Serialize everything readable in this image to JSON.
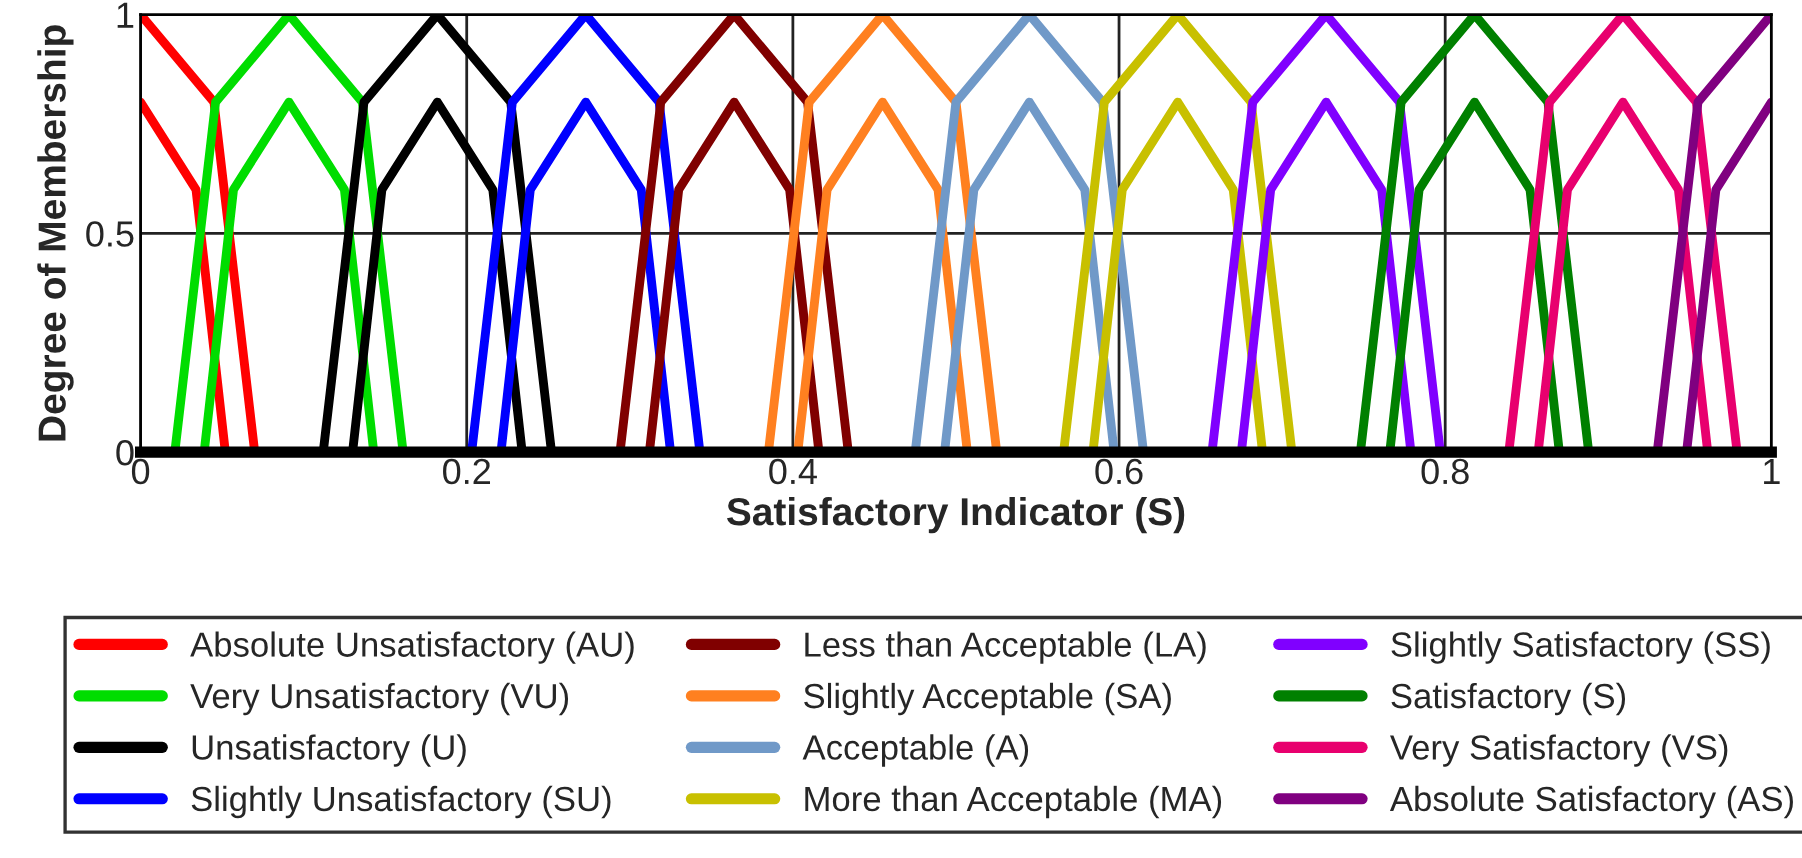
{
  "chart_data": {
    "type": "line",
    "xlabel": "Satisfactory Indicator (S)",
    "ylabel": "Degree of Membership",
    "xlim": [
      0,
      1
    ],
    "ylim": [
      0,
      1
    ],
    "xticks": [
      0,
      0.2,
      0.4,
      0.6,
      0.8,
      1
    ],
    "yticks": [
      0,
      0.5,
      1
    ],
    "grid": true,
    "legend": "bottom",
    "marker": "none",
    "line_style": "solid",
    "series": [
      {
        "name": "Absolute Unsatisfactory (AU)",
        "color": "#ff0000",
        "x": [
          0,
          0.045,
          0.07
        ],
        "values": [
          1,
          0.8,
          0
        ]
      },
      {
        "color": "#ff0000",
        "x": [
          0,
          0.034,
          0.052
        ],
        "values": [
          0.8,
          0.6,
          0
        ]
      },
      {
        "name": "Very Unsatisfactory (VU)",
        "color": "#00dd00",
        "x": [
          0.021,
          0.046,
          0.091,
          0.136,
          0.161
        ],
        "values": [
          0,
          0.8,
          1,
          0.8,
          0
        ]
      },
      {
        "color": "#00dd00",
        "x": [
          0.039,
          0.057,
          0.091,
          0.125,
          0.143
        ],
        "values": [
          0,
          0.6,
          0.8,
          0.6,
          0
        ]
      },
      {
        "name": "Unsatisfactory (U)",
        "color": "#000000",
        "x": [
          0.112,
          0.137,
          0.182,
          0.227,
          0.252
        ],
        "values": [
          0,
          0.8,
          1,
          0.8,
          0
        ]
      },
      {
        "color": "#000000",
        "x": [
          0.13,
          0.148,
          0.182,
          0.216,
          0.234
        ],
        "values": [
          0,
          0.6,
          0.8,
          0.6,
          0
        ]
      },
      {
        "name": "Slightly Unsatisfactory (SU)",
        "color": "#0000ff",
        "x": [
          0.203,
          0.228,
          0.273,
          0.318,
          0.343
        ],
        "values": [
          0,
          0.8,
          1,
          0.8,
          0
        ]
      },
      {
        "color": "#0000ff",
        "x": [
          0.221,
          0.239,
          0.273,
          0.307,
          0.325
        ],
        "values": [
          0,
          0.6,
          0.8,
          0.6,
          0
        ]
      },
      {
        "name": "Less than Acceptable (LA)",
        "color": "#800000",
        "x": [
          0.294,
          0.319,
          0.364,
          0.409,
          0.434
        ],
        "values": [
          0,
          0.8,
          1,
          0.8,
          0
        ]
      },
      {
        "color": "#800000",
        "x": [
          0.312,
          0.33,
          0.364,
          0.398,
          0.416
        ],
        "values": [
          0,
          0.6,
          0.8,
          0.6,
          0
        ]
      },
      {
        "name": "Slightly Acceptable (SA)",
        "color": "#ff8020",
        "x": [
          0.385,
          0.41,
          0.455,
          0.5,
          0.525
        ],
        "values": [
          0,
          0.8,
          1,
          0.8,
          0
        ]
      },
      {
        "color": "#ff8020",
        "x": [
          0.403,
          0.421,
          0.455,
          0.489,
          0.507
        ],
        "values": [
          0,
          0.6,
          0.8,
          0.6,
          0
        ]
      },
      {
        "name": "Acceptable (A)",
        "color": "#7099c8",
        "x": [
          0.475,
          0.5,
          0.545,
          0.59,
          0.615
        ],
        "values": [
          0,
          0.8,
          1,
          0.8,
          0
        ]
      },
      {
        "color": "#7099c8",
        "x": [
          0.493,
          0.511,
          0.545,
          0.579,
          0.597
        ],
        "values": [
          0,
          0.6,
          0.8,
          0.6,
          0
        ]
      },
      {
        "name": "More than Acceptable (MA)",
        "color": "#c8c000",
        "x": [
          0.566,
          0.591,
          0.636,
          0.681,
          0.706
        ],
        "values": [
          0,
          0.8,
          1,
          0.8,
          0
        ]
      },
      {
        "color": "#c8c000",
        "x": [
          0.584,
          0.602,
          0.636,
          0.67,
          0.688
        ],
        "values": [
          0,
          0.6,
          0.8,
          0.6,
          0
        ]
      },
      {
        "name": "Slightly Satisfactory (SS)",
        "color": "#8000ff",
        "x": [
          0.657,
          0.682,
          0.727,
          0.772,
          0.797
        ],
        "values": [
          0,
          0.8,
          1,
          0.8,
          0
        ]
      },
      {
        "color": "#8000ff",
        "x": [
          0.675,
          0.693,
          0.727,
          0.761,
          0.779
        ],
        "values": [
          0,
          0.6,
          0.8,
          0.6,
          0
        ]
      },
      {
        "name": "Satisfactory (S)",
        "color": "#008000",
        "x": [
          0.748,
          0.773,
          0.818,
          0.863,
          0.888
        ],
        "values": [
          0,
          0.8,
          1,
          0.8,
          0
        ]
      },
      {
        "color": "#008000",
        "x": [
          0.766,
          0.784,
          0.818,
          0.852,
          0.87
        ],
        "values": [
          0,
          0.6,
          0.8,
          0.6,
          0
        ]
      },
      {
        "name": "Very Satisfactory (VS)",
        "color": "#e8006e",
        "x": [
          0.839,
          0.864,
          0.909,
          0.954,
          0.979
        ],
        "values": [
          0,
          0.8,
          1,
          0.8,
          0
        ]
      },
      {
        "color": "#e8006e",
        "x": [
          0.857,
          0.875,
          0.909,
          0.943,
          0.961
        ],
        "values": [
          0,
          0.6,
          0.8,
          0.6,
          0
        ]
      },
      {
        "name": "Absolute Satisfactory (AS)",
        "color": "#800080",
        "x": [
          0.93,
          0.955,
          1
        ],
        "values": [
          0,
          0.8,
          1
        ]
      },
      {
        "color": "#800080",
        "x": [
          0.948,
          0.966,
          1
        ],
        "values": [
          0,
          0.6,
          0.8
        ]
      }
    ]
  }
}
